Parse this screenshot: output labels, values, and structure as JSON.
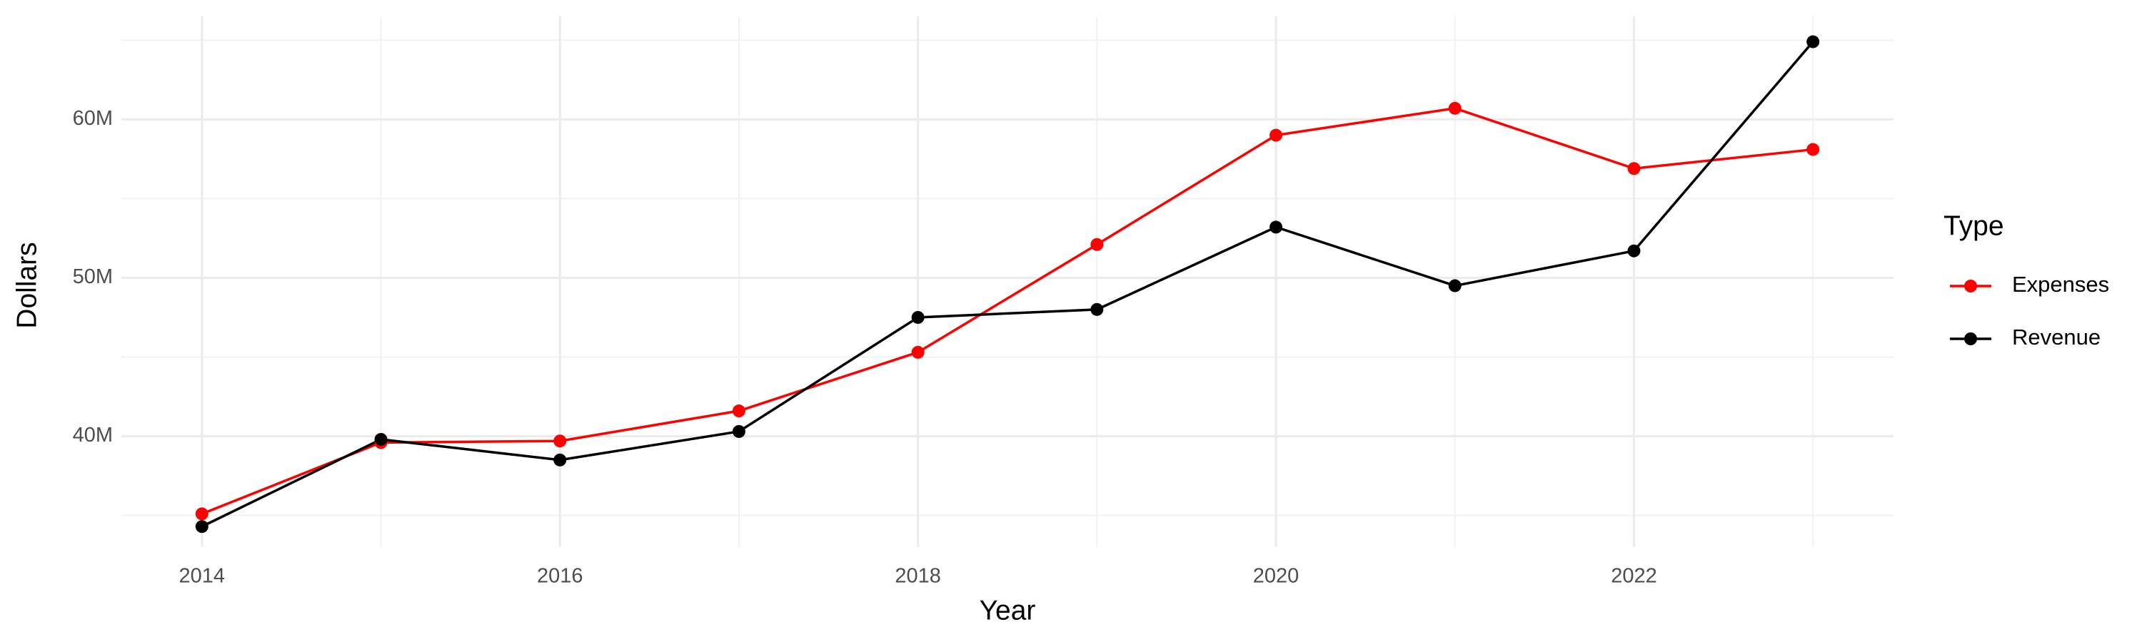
{
  "chart_data": {
    "type": "line",
    "x_label": "Year",
    "y_label": "Dollars",
    "legend_title": "Type",
    "x": [
      2014,
      2015,
      2016,
      2017,
      2018,
      2019,
      2020,
      2021,
      2022,
      2023
    ],
    "series": [
      {
        "name": "Expenses",
        "color": "#ff0000",
        "values": [
          35100000,
          39600000,
          39700000,
          41600000,
          45300000,
          52100000,
          59000000,
          60700000,
          56900000,
          58100000
        ]
      },
      {
        "name": "Revenue",
        "color": "#000000",
        "values": [
          34300000,
          39800000,
          38500000,
          40300000,
          47500000,
          48000000,
          53200000,
          49500000,
          51700000,
          64900000
        ]
      }
    ],
    "xlim": [
      2013.55,
      2023.45
    ],
    "xticks": [
      2014,
      2016,
      2018,
      2020,
      2022
    ],
    "ylim": [
      33000000,
      66500000
    ],
    "yticks": [
      {
        "value": 40000000,
        "label": "40M"
      },
      {
        "value": 50000000,
        "label": "50M"
      },
      {
        "value": 60000000,
        "label": "60M"
      }
    ],
    "grid": true,
    "legend_position": "right"
  }
}
